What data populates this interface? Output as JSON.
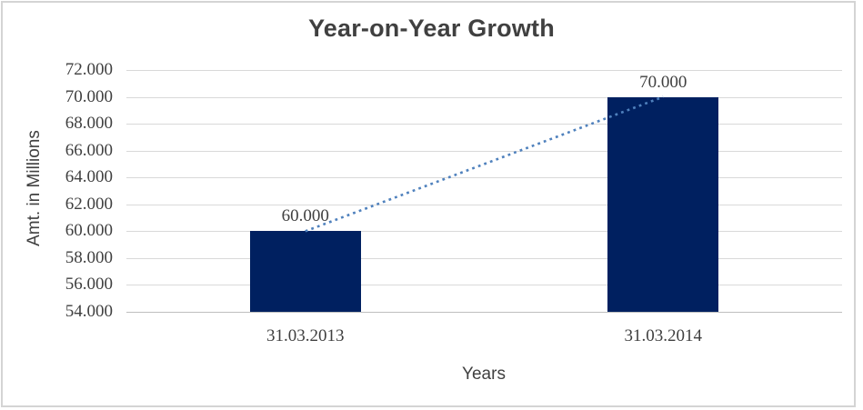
{
  "frame": {
    "background": "#FFFFFF",
    "border_color": "#D4D4D4"
  },
  "chart_data": {
    "type": "bar",
    "title": "Year-on-Year Growth",
    "xlabel": "Years",
    "ylabel": "Amt. in Millions",
    "categories": [
      "31.03.2013",
      "31.03.2014"
    ],
    "values": [
      60000,
      70000
    ],
    "value_labels": [
      "60.000",
      "70.000"
    ],
    "ylim": [
      54000,
      72000
    ],
    "y_tick_step": 2000,
    "y_ticks": [
      {
        "value": 72000,
        "label": "72.000"
      },
      {
        "value": 70000,
        "label": "70.000"
      },
      {
        "value": 68000,
        "label": "68.000"
      },
      {
        "value": 66000,
        "label": "66.000"
      },
      {
        "value": 64000,
        "label": "64.000"
      },
      {
        "value": 62000,
        "label": "62.000"
      },
      {
        "value": 60000,
        "label": "60.000"
      },
      {
        "value": 58000,
        "label": "58.000"
      },
      {
        "value": 56000,
        "label": "56.000"
      },
      {
        "value": 54000,
        "label": "54.000"
      }
    ],
    "grid": true,
    "legend": false,
    "trendline": {
      "style": "dotted",
      "color": "#4F81BD",
      "connects": "bar tops"
    },
    "colors": {
      "bar": "#002060",
      "gridline": "#D9D9D9",
      "axis_line": "#BFBFBF",
      "title_text": "#404040",
      "tick_text": "#3F3F3F"
    }
  }
}
